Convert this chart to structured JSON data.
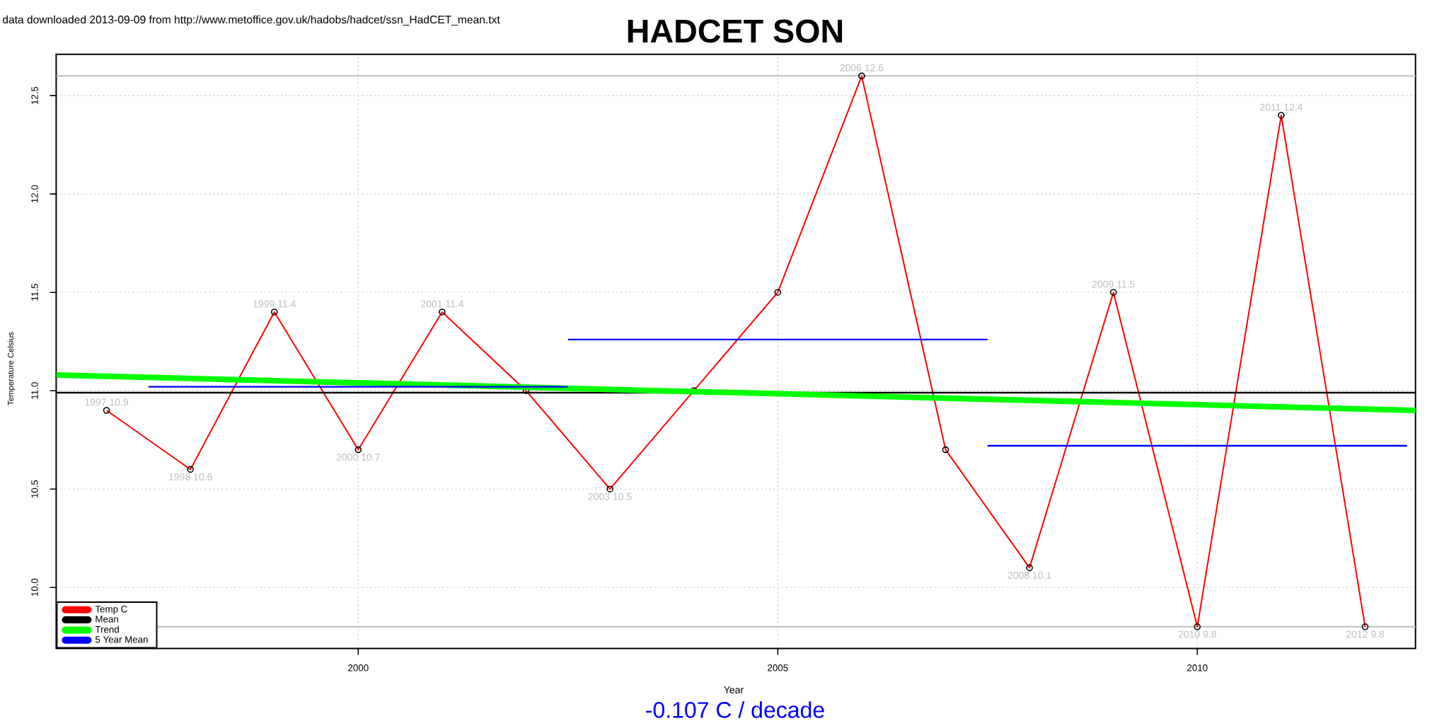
{
  "chart_data": {
    "type": "line",
    "title": "HADCET SON",
    "xlabel": "Year",
    "ylabel": "Temperature Celsius",
    "annotations": [
      "data downloaded 2013-09-09 from http://www.metoffice.gov.uk/hadobs/hadcet/ssn_HadCET_mean.txt",
      "-0.107 C / decade"
    ],
    "xlim": [
      1996.4,
      2012.6
    ],
    "ylim": [
      9.69,
      12.71
    ],
    "xticks": [
      2000,
      2005,
      2010
    ],
    "yticks": [
      {
        "value": 10,
        "label": "10.0"
      },
      {
        "value": 10.5,
        "label": "10.5"
      },
      {
        "value": 11,
        "label": "11.0"
      },
      {
        "value": 11.5,
        "label": "11.5"
      },
      {
        "value": 12,
        "label": "12.0"
      },
      {
        "value": 12.5,
        "label": "12.5"
      }
    ],
    "grid": true,
    "legend": "bottom left",
    "ref_lines": [
      {
        "axis": "y",
        "value": 12.6,
        "color": "#bebebe"
      },
      {
        "axis": "y",
        "value": 9.8,
        "color": "#bebebe"
      }
    ],
    "series": [
      {
        "name": "Temp C",
        "color": "#ff0000",
        "marker": "circle",
        "x": [
          1997,
          1998,
          1999,
          2000,
          2001,
          2002,
          2003,
          2004,
          2005,
          2006,
          2007,
          2008,
          2009,
          2010,
          2011,
          2012
        ],
        "values": [
          10.9,
          10.6,
          11.4,
          10.7,
          11.4,
          11.0,
          10.5,
          11.0,
          11.5,
          12.6,
          10.7,
          10.1,
          11.5,
          9.8,
          12.4,
          9.8
        ],
        "value_labels": [
          "1997 10.9",
          "1998 10.6",
          "1999 11.4",
          "2000 10.7",
          "2001 11.4",
          null,
          "2003 10.5",
          null,
          null,
          "2006 12.6",
          null,
          "2008 10.1",
          "2009 11.5",
          "2010 9.8",
          "2011 12.4",
          "2012 9.8"
        ]
      },
      {
        "name": "Mean",
        "color": "#000000",
        "x": [
          1996.4,
          2012.6
        ],
        "values": [
          10.99,
          10.99
        ]
      },
      {
        "name": "Trend",
        "color": "#00ff00",
        "x": [
          1996.4,
          2012.6
        ],
        "values": [
          11.08,
          10.9
        ]
      },
      {
        "name": "5 Year Mean",
        "color": "#0000ff",
        "x": [
          1997.5,
          2002.5
        ],
        "values": [
          11.02,
          11.02
        ]
      },
      {
        "color": "#0000ff",
        "x": [
          2002.5,
          2007.5
        ],
        "values": [
          11.26,
          11.26
        ]
      },
      {
        "color": "#0000ff",
        "x": [
          2007.5,
          2012.5
        ],
        "values": [
          10.72,
          10.72
        ]
      }
    ]
  }
}
